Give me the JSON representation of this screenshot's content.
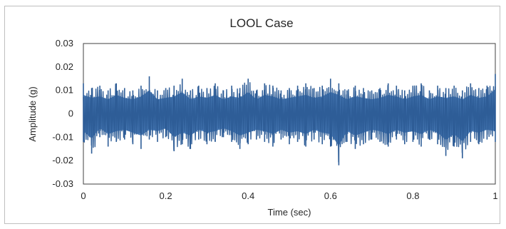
{
  "chart_data": {
    "type": "line",
    "title": "LOOL Case",
    "xlabel": "Time (sec)",
    "ylabel": "Amplitude (g)",
    "xlim": [
      0,
      1
    ],
    "ylim": [
      -0.03,
      0.03
    ],
    "x_ticks": [
      0,
      0.2,
      0.4,
      0.6,
      0.8,
      1
    ],
    "x_tick_labels": [
      "0",
      "0.2",
      "0.4",
      "0.6",
      "0.8",
      "1"
    ],
    "y_ticks": [
      0.03,
      0.02,
      0.01,
      0,
      -0.01,
      -0.02,
      -0.03
    ],
    "y_tick_labels": [
      "0.03",
      "0.02",
      "0.01",
      "0",
      "-0.01",
      "-0.02",
      "-0.03"
    ],
    "grid": false,
    "legend": "none",
    "series": [
      {
        "color": "#2e5d97",
        "fill_color": "#4f81bd",
        "x": [
          0,
          0.02,
          0.04,
          0.06,
          0.08,
          0.1,
          0.12,
          0.14,
          0.16,
          0.18,
          0.2,
          0.22,
          0.24,
          0.26,
          0.28,
          0.3,
          0.32,
          0.34,
          0.36,
          0.38,
          0.4,
          0.42,
          0.44,
          0.46,
          0.48,
          0.5,
          0.52,
          0.54,
          0.56,
          0.58,
          0.6,
          0.62,
          0.64,
          0.66,
          0.68,
          0.7,
          0.72,
          0.74,
          0.76,
          0.78,
          0.8,
          0.82,
          0.84,
          0.86,
          0.88,
          0.9,
          0.92,
          0.94,
          0.96,
          0.98,
          1
        ],
        "upper": [
          0.013,
          0.011,
          0.012,
          0.01,
          0.013,
          0.011,
          0.01,
          0.012,
          0.016,
          0.01,
          0.011,
          0.012,
          0.015,
          0.01,
          0.012,
          0.011,
          0.013,
          0.01,
          0.012,
          0.011,
          0.015,
          0.01,
          0.013,
          0.012,
          0.01,
          0.011,
          0.012,
          0.013,
          0.011,
          0.012,
          0.015,
          0.013,
          0.01,
          0.012,
          0.011,
          0.01,
          0.011,
          0.013,
          0.012,
          0.01,
          0.012,
          0.013,
          0.01,
          0.012,
          0.011,
          0.012,
          0.01,
          0.013,
          0.011,
          0.012,
          0.017
        ],
        "lower": [
          -0.012,
          -0.017,
          -0.01,
          -0.014,
          -0.012,
          -0.011,
          -0.013,
          -0.015,
          -0.011,
          -0.012,
          -0.01,
          -0.016,
          -0.013,
          -0.015,
          -0.011,
          -0.013,
          -0.012,
          -0.01,
          -0.012,
          -0.015,
          -0.013,
          -0.011,
          -0.012,
          -0.014,
          -0.011,
          -0.013,
          -0.012,
          -0.014,
          -0.011,
          -0.013,
          -0.014,
          -0.022,
          -0.012,
          -0.015,
          -0.013,
          -0.011,
          -0.012,
          -0.014,
          -0.011,
          -0.013,
          -0.012,
          -0.014,
          -0.011,
          -0.013,
          -0.018,
          -0.014,
          -0.019,
          -0.012,
          -0.013,
          -0.011,
          -0.012
        ]
      }
    ]
  }
}
